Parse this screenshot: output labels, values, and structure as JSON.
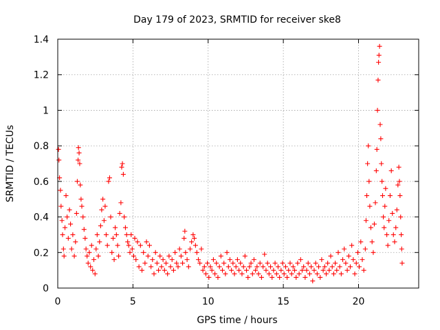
{
  "chart_data": {
    "type": "scatter",
    "title": "Day 179 of 2023, SRMTID for receiver ske8",
    "xlabel": "GPS time / hours",
    "ylabel": "SRMTID / TECUs",
    "xlim": [
      0,
      24
    ],
    "ylim": [
      0,
      1.4
    ],
    "xticks": [
      0,
      5,
      10,
      15,
      20
    ],
    "xtick_labels": [
      "0",
      "5",
      "10",
      "15",
      "20"
    ],
    "yticks": [
      0,
      0.2,
      0.4,
      0.6,
      0.8,
      1.0,
      1.2,
      1.4
    ],
    "ytick_labels": [
      "0",
      "0.2",
      "0.4",
      "0.6",
      "0.8",
      "1",
      "1.2",
      "1.4"
    ],
    "grid": true,
    "marker": "+",
    "color": "#ff0000",
    "series": [
      {
        "name": "ske8",
        "points": [
          [
            0.05,
            0.78
          ],
          [
            0.08,
            0.72
          ],
          [
            0.12,
            0.62
          ],
          [
            0.18,
            0.55
          ],
          [
            0.22,
            0.46
          ],
          [
            0.28,
            0.38
          ],
          [
            0.32,
            0.3
          ],
          [
            0.38,
            0.22
          ],
          [
            0.42,
            0.18
          ],
          [
            0.48,
            0.34
          ],
          [
            0.55,
            0.52
          ],
          [
            0.62,
            0.4
          ],
          [
            0.7,
            0.28
          ],
          [
            0.78,
            0.44
          ],
          [
            0.85,
            0.36
          ],
          [
            0.92,
            0.22
          ],
          [
            1.0,
            0.3
          ],
          [
            1.1,
            0.18
          ],
          [
            1.18,
            0.26
          ],
          [
            1.25,
            0.42
          ],
          [
            1.3,
            0.6
          ],
          [
            1.35,
            0.72
          ],
          [
            1.38,
            0.79
          ],
          [
            1.42,
            0.76
          ],
          [
            1.46,
            0.7
          ],
          [
            1.5,
            0.58
          ],
          [
            1.55,
            0.5
          ],
          [
            1.6,
            0.46
          ],
          [
            1.68,
            0.4
          ],
          [
            1.75,
            0.33
          ],
          [
            1.82,
            0.28
          ],
          [
            1.88,
            0.22
          ],
          [
            1.95,
            0.18
          ],
          [
            2.02,
            0.14
          ],
          [
            2.1,
            0.2
          ],
          [
            2.18,
            0.12
          ],
          [
            2.25,
            0.24
          ],
          [
            2.32,
            0.1
          ],
          [
            2.4,
            0.16
          ],
          [
            2.48,
            0.08
          ],
          [
            2.55,
            0.22
          ],
          [
            2.62,
            0.3
          ],
          [
            2.7,
            0.18
          ],
          [
            2.78,
            0.26
          ],
          [
            2.85,
            0.35
          ],
          [
            2.92,
            0.44
          ],
          [
            3.0,
            0.5
          ],
          [
            3.08,
            0.38
          ],
          [
            3.15,
            0.46
          ],
          [
            3.22,
            0.3
          ],
          [
            3.3,
            0.24
          ],
          [
            3.38,
            0.6
          ],
          [
            3.45,
            0.62
          ],
          [
            3.52,
            0.4
          ],
          [
            3.6,
            0.2
          ],
          [
            3.68,
            0.28
          ],
          [
            3.75,
            0.16
          ],
          [
            3.82,
            0.34
          ],
          [
            3.9,
            0.3
          ],
          [
            3.98,
            0.24
          ],
          [
            4.05,
            0.18
          ],
          [
            4.12,
            0.42
          ],
          [
            4.2,
            0.48
          ],
          [
            4.25,
            0.68
          ],
          [
            4.3,
            0.7
          ],
          [
            4.36,
            0.64
          ],
          [
            4.42,
            0.4
          ],
          [
            4.5,
            0.34
          ],
          [
            4.58,
            0.3
          ],
          [
            4.65,
            0.26
          ],
          [
            4.72,
            0.24
          ],
          [
            4.8,
            0.2
          ],
          [
            4.88,
            0.3
          ],
          [
            4.95,
            0.22
          ],
          [
            5.05,
            0.18
          ],
          [
            5.12,
            0.28
          ],
          [
            5.2,
            0.16
          ],
          [
            5.3,
            0.26
          ],
          [
            5.4,
            0.12
          ],
          [
            5.5,
            0.24
          ],
          [
            5.6,
            0.1
          ],
          [
            5.7,
            0.2
          ],
          [
            5.8,
            0.14
          ],
          [
            5.9,
            0.26
          ],
          [
            6.0,
            0.18
          ],
          [
            6.1,
            0.24
          ],
          [
            6.2,
            0.12
          ],
          [
            6.3,
            0.16
          ],
          [
            6.4,
            0.08
          ],
          [
            6.5,
            0.2
          ],
          [
            6.6,
            0.14
          ],
          [
            6.7,
            0.1
          ],
          [
            6.8,
            0.18
          ],
          [
            6.9,
            0.12
          ],
          [
            7.0,
            0.16
          ],
          [
            7.1,
            0.1
          ],
          [
            7.2,
            0.14
          ],
          [
            7.3,
            0.08
          ],
          [
            7.4,
            0.18
          ],
          [
            7.5,
            0.12
          ],
          [
            7.6,
            0.16
          ],
          [
            7.7,
            0.1
          ],
          [
            7.8,
            0.2
          ],
          [
            7.9,
            0.14
          ],
          [
            8.0,
            0.12
          ],
          [
            8.1,
            0.22
          ],
          [
            8.2,
            0.18
          ],
          [
            8.3,
            0.14
          ],
          [
            8.4,
            0.28
          ],
          [
            8.45,
            0.32
          ],
          [
            8.5,
            0.2
          ],
          [
            8.6,
            0.16
          ],
          [
            8.7,
            0.12
          ],
          [
            8.8,
            0.22
          ],
          [
            8.9,
            0.26
          ],
          [
            9.0,
            0.3
          ],
          [
            9.08,
            0.28
          ],
          [
            9.16,
            0.24
          ],
          [
            9.25,
            0.2
          ],
          [
            9.35,
            0.16
          ],
          [
            9.45,
            0.14
          ],
          [
            9.55,
            0.22
          ],
          [
            9.65,
            0.1
          ],
          [
            9.75,
            0.12
          ],
          [
            9.85,
            0.08
          ],
          [
            9.95,
            0.14
          ],
          [
            10.05,
            0.06
          ],
          [
            10.15,
            0.12
          ],
          [
            10.25,
            0.1
          ],
          [
            10.35,
            0.16
          ],
          [
            10.45,
            0.08
          ],
          [
            10.55,
            0.14
          ],
          [
            10.65,
            0.06
          ],
          [
            10.75,
            0.12
          ],
          [
            10.85,
            0.18
          ],
          [
            10.95,
            0.1
          ],
          [
            11.05,
            0.14
          ],
          [
            11.15,
            0.08
          ],
          [
            11.25,
            0.2
          ],
          [
            11.35,
            0.12
          ],
          [
            11.45,
            0.16
          ],
          [
            11.55,
            0.1
          ],
          [
            11.65,
            0.14
          ],
          [
            11.75,
            0.08
          ],
          [
            11.85,
            0.12
          ],
          [
            11.95,
            0.16
          ],
          [
            12.05,
            0.1
          ],
          [
            12.15,
            0.14
          ],
          [
            12.25,
            0.08
          ],
          [
            12.35,
            0.12
          ],
          [
            12.45,
            0.18
          ],
          [
            12.55,
            0.1
          ],
          [
            12.65,
            0.06
          ],
          [
            12.75,
            0.12
          ],
          [
            12.85,
            0.14
          ],
          [
            12.95,
            0.08
          ],
          [
            13.05,
            0.16
          ],
          [
            13.15,
            0.1
          ],
          [
            13.25,
            0.12
          ],
          [
            13.35,
            0.08
          ],
          [
            13.45,
            0.14
          ],
          [
            13.55,
            0.06
          ],
          [
            13.65,
            0.12
          ],
          [
            13.75,
            0.19
          ],
          [
            13.85,
            0.1
          ],
          [
            13.95,
            0.14
          ],
          [
            14.05,
            0.08
          ],
          [
            14.15,
            0.12
          ],
          [
            14.25,
            0.06
          ],
          [
            14.35,
            0.1
          ],
          [
            14.45,
            0.14
          ],
          [
            14.55,
            0.08
          ],
          [
            14.65,
            0.12
          ],
          [
            14.75,
            0.06
          ],
          [
            14.85,
            0.1
          ],
          [
            14.95,
            0.14
          ],
          [
            15.05,
            0.08
          ],
          [
            15.15,
            0.12
          ],
          [
            15.25,
            0.06
          ],
          [
            15.35,
            0.1
          ],
          [
            15.45,
            0.14
          ],
          [
            15.55,
            0.08
          ],
          [
            15.65,
            0.12
          ],
          [
            15.75,
            0.1
          ],
          [
            15.85,
            0.06
          ],
          [
            15.95,
            0.14
          ],
          [
            16.05,
            0.08
          ],
          [
            16.15,
            0.16
          ],
          [
            16.25,
            0.1
          ],
          [
            16.35,
            0.12
          ],
          [
            16.45,
            0.06
          ],
          [
            16.55,
            0.1
          ],
          [
            16.65,
            0.14
          ],
          [
            16.75,
            0.08
          ],
          [
            16.85,
            0.12
          ],
          [
            16.95,
            0.04
          ],
          [
            17.05,
            0.1
          ],
          [
            17.15,
            0.14
          ],
          [
            17.25,
            0.08
          ],
          [
            17.35,
            0.12
          ],
          [
            17.45,
            0.06
          ],
          [
            17.55,
            0.16
          ],
          [
            17.65,
            0.1
          ],
          [
            17.75,
            0.12
          ],
          [
            17.85,
            0.08
          ],
          [
            17.95,
            0.14
          ],
          [
            18.05,
            0.1
          ],
          [
            18.15,
            0.18
          ],
          [
            18.25,
            0.12
          ],
          [
            18.35,
            0.08
          ],
          [
            18.45,
            0.14
          ],
          [
            18.55,
            0.1
          ],
          [
            18.65,
            0.2
          ],
          [
            18.75,
            0.12
          ],
          [
            18.85,
            0.08
          ],
          [
            18.95,
            0.16
          ],
          [
            19.05,
            0.22
          ],
          [
            19.15,
            0.14
          ],
          [
            19.25,
            0.1
          ],
          [
            19.35,
            0.18
          ],
          [
            19.45,
            0.12
          ],
          [
            19.55,
            0.24
          ],
          [
            19.65,
            0.16
          ],
          [
            19.75,
            0.08
          ],
          [
            19.85,
            0.14
          ],
          [
            19.95,
            0.2
          ],
          [
            20.05,
            0.12
          ],
          [
            20.15,
            0.26
          ],
          [
            20.25,
            0.16
          ],
          [
            20.35,
            0.1
          ],
          [
            20.45,
            0.22
          ],
          [
            20.5,
            0.38
          ],
          [
            20.55,
            0.52
          ],
          [
            20.6,
            0.7
          ],
          [
            20.65,
            0.8
          ],
          [
            20.7,
            0.6
          ],
          [
            20.75,
            0.46
          ],
          [
            20.82,
            0.34
          ],
          [
            20.9,
            0.26
          ],
          [
            20.98,
            0.2
          ],
          [
            21.05,
            0.36
          ],
          [
            21.12,
            0.48
          ],
          [
            21.18,
            0.66
          ],
          [
            21.22,
            0.78
          ],
          [
            21.26,
            1.0
          ],
          [
            21.3,
            1.17
          ],
          [
            21.33,
            1.27
          ],
          [
            21.36,
            1.31
          ],
          [
            21.4,
            1.36
          ],
          [
            21.44,
            0.92
          ],
          [
            21.48,
            0.84
          ],
          [
            21.52,
            0.7
          ],
          [
            21.56,
            0.6
          ],
          [
            21.6,
            0.52
          ],
          [
            21.65,
            0.4
          ],
          [
            21.7,
            0.34
          ],
          [
            21.75,
            0.46
          ],
          [
            21.8,
            0.56
          ],
          [
            21.88,
            0.3
          ],
          [
            21.95,
            0.24
          ],
          [
            22.02,
            0.38
          ],
          [
            22.1,
            0.52
          ],
          [
            22.18,
            0.66
          ],
          [
            22.25,
            0.42
          ],
          [
            22.32,
            0.3
          ],
          [
            22.4,
            0.26
          ],
          [
            22.48,
            0.34
          ],
          [
            22.55,
            0.44
          ],
          [
            22.62,
            0.58
          ],
          [
            22.68,
            0.68
          ],
          [
            22.72,
            0.6
          ],
          [
            22.76,
            0.52
          ],
          [
            22.8,
            0.4
          ],
          [
            22.84,
            0.3
          ],
          [
            22.87,
            0.22
          ],
          [
            22.9,
            0.14
          ]
        ]
      }
    ]
  }
}
